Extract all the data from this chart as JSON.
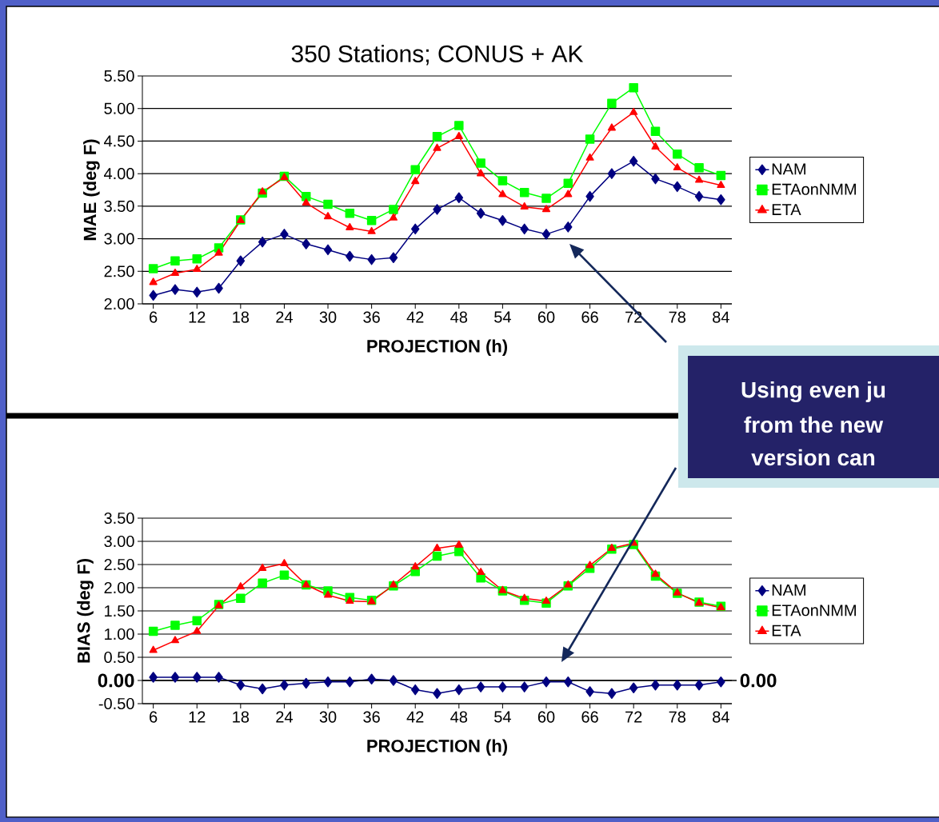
{
  "chart_data": [
    {
      "type": "line",
      "title": "350 Stations; CONUS + AK",
      "xlabel": "PROJECTION (h)",
      "ylabel": "MAE (deg F)",
      "x": [
        6,
        9,
        12,
        15,
        18,
        21,
        24,
        27,
        30,
        33,
        36,
        39,
        42,
        45,
        48,
        51,
        54,
        57,
        60,
        63,
        66,
        69,
        72,
        75,
        78,
        81,
        84
      ],
      "xlim": [
        4.5,
        85.5
      ],
      "xticks": [
        6,
        12,
        18,
        24,
        30,
        36,
        42,
        48,
        54,
        60,
        66,
        72,
        78,
        84
      ],
      "ylim": [
        2,
        5.5
      ],
      "yticks": [
        {
          "value": 2,
          "label": "2.00"
        },
        {
          "value": 2.5,
          "label": "2.50"
        },
        {
          "value": 3,
          "label": "3.00"
        },
        {
          "value": 3.5,
          "label": "3.50"
        },
        {
          "value": 4,
          "label": "4.00"
        },
        {
          "value": 4.5,
          "label": "4.50"
        },
        {
          "value": 5,
          "label": "5.00"
        },
        {
          "value": 5.5,
          "label": "5.50"
        }
      ],
      "grid": "y",
      "legend": "right",
      "series": [
        {
          "name": "NAM",
          "color": "#000080",
          "marker": "diamond",
          "values": [
            2.13,
            2.22,
            2.18,
            2.24,
            2.66,
            2.95,
            3.07,
            2.92,
            2.83,
            2.73,
            2.68,
            2.71,
            3.15,
            3.45,
            3.63,
            3.39,
            3.28,
            3.15,
            3.07,
            3.18,
            3.65,
            4.0,
            4.19,
            3.92,
            3.8,
            3.65,
            3.6
          ]
        },
        {
          "name": "ETAonNMM",
          "color": "#00ff00",
          "marker": "square",
          "values": [
            2.54,
            2.66,
            2.69,
            2.86,
            3.29,
            3.7,
            3.96,
            3.65,
            3.53,
            3.39,
            3.28,
            3.45,
            4.06,
            4.57,
            4.74,
            4.16,
            3.89,
            3.71,
            3.62,
            3.85,
            4.53,
            5.08,
            5.32,
            4.65,
            4.3,
            4.09,
            3.97
          ]
        },
        {
          "name": "ETA",
          "color": "#ff0000",
          "marker": "triangle",
          "values": [
            2.33,
            2.47,
            2.53,
            2.78,
            3.28,
            3.72,
            3.94,
            3.55,
            3.34,
            3.17,
            3.11,
            3.32,
            3.88,
            4.39,
            4.57,
            4.0,
            3.68,
            3.49,
            3.45,
            3.68,
            4.24,
            4.7,
            4.94,
            4.41,
            4.09,
            3.9,
            3.82
          ]
        }
      ],
      "annotations": [
        "Using even ju",
        "from the new",
        "version can"
      ]
    },
    {
      "type": "line",
      "xlabel": "PROJECTION (h)",
      "ylabel": "BIAS (deg F)",
      "x": [
        6,
        9,
        12,
        15,
        18,
        21,
        24,
        27,
        30,
        33,
        36,
        39,
        42,
        45,
        48,
        51,
        54,
        57,
        60,
        63,
        66,
        69,
        72,
        75,
        78,
        81,
        84
      ],
      "xlim": [
        4.5,
        85.5
      ],
      "xticks": [
        6,
        12,
        18,
        24,
        30,
        36,
        42,
        48,
        54,
        60,
        66,
        72,
        78,
        84
      ],
      "ylim": [
        -0.5,
        3.5
      ],
      "yticks": [
        {
          "value": -0.5,
          "label": "-0.50"
        },
        {
          "value": 0,
          "label": "0.00"
        },
        {
          "value": 0.5,
          "label": "0.50"
        },
        {
          "value": 1,
          "label": "1.00"
        },
        {
          "value": 1.5,
          "label": "1.50"
        },
        {
          "value": 2,
          "label": "2.00"
        },
        {
          "value": 2.5,
          "label": "2.50"
        },
        {
          "value": 3,
          "label": "3.00"
        },
        {
          "value": 3.5,
          "label": "3.50"
        }
      ],
      "ref_lines": [
        {
          "axis": "y",
          "value": 0,
          "label": "0.00"
        }
      ],
      "grid": "y",
      "legend": "right",
      "series": [
        {
          "name": "NAM",
          "color": "#000080",
          "marker": "diamond",
          "values": [
            0.07,
            0.07,
            0.07,
            0.07,
            -0.1,
            -0.18,
            -0.1,
            -0.06,
            -0.03,
            -0.03,
            0.03,
            0.0,
            -0.2,
            -0.28,
            -0.2,
            -0.14,
            -0.14,
            -0.14,
            -0.03,
            -0.03,
            -0.24,
            -0.28,
            -0.16,
            -0.1,
            -0.1,
            -0.1,
            -0.03
          ]
        },
        {
          "name": "ETAonNMM",
          "color": "#00ff00",
          "marker": "square",
          "values": [
            1.06,
            1.19,
            1.29,
            1.64,
            1.77,
            2.1,
            2.27,
            2.06,
            1.93,
            1.79,
            1.73,
            2.04,
            2.35,
            2.68,
            2.78,
            2.21,
            1.93,
            1.73,
            1.67,
            2.04,
            2.42,
            2.83,
            2.93,
            2.25,
            1.88,
            1.69,
            1.6
          ]
        },
        {
          "name": "ETA",
          "color": "#ff0000",
          "marker": "triangle",
          "values": [
            0.65,
            0.86,
            1.06,
            1.61,
            2.02,
            2.42,
            2.52,
            2.06,
            1.84,
            1.71,
            1.7,
            2.06,
            2.45,
            2.85,
            2.92,
            2.33,
            1.94,
            1.77,
            1.71,
            2.06,
            2.48,
            2.85,
            2.96,
            2.29,
            1.89,
            1.67,
            1.57
          ]
        }
      ]
    }
  ]
}
